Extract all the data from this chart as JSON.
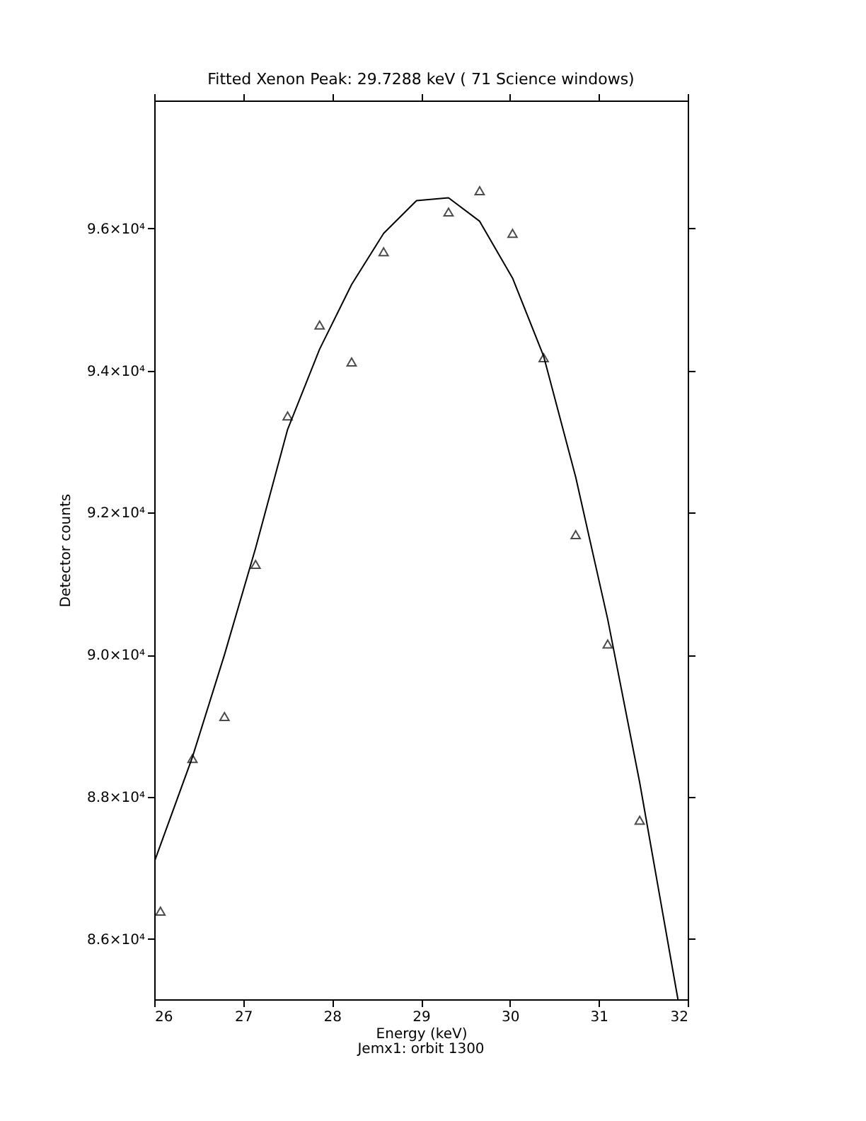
{
  "chart_data": {
    "type": "scatter",
    "title": "Fitted Xenon Peak:       29.7288 keV (      71 Science windows)",
    "xlabel": "Energy (keV)",
    "ylabel": "Detector counts",
    "annotations": [
      "Jemx1: orbit 1300"
    ],
    "xlim": [
      26,
      32
    ],
    "ylim": [
      85150,
      97800
    ],
    "xticks": [
      26,
      27,
      28,
      29,
      30,
      31,
      32
    ],
    "yticks": [
      {
        "value": 86000,
        "label": "8.6×10⁴"
      },
      {
        "value": 88000,
        "label": "8.8×10⁴"
      },
      {
        "value": 90000,
        "label": "9.0×10⁴"
      },
      {
        "value": 92000,
        "label": "9.2×10⁴"
      },
      {
        "value": 94000,
        "label": "9.4×10⁴"
      },
      {
        "value": 96000,
        "label": "9.6×10⁴"
      }
    ],
    "grid": false,
    "series": [
      {
        "type": "line",
        "color": "#000000",
        "line_style": "solid",
        "x": [
          26.0,
          26.43,
          26.79,
          27.14,
          27.5,
          27.86,
          28.22,
          28.58,
          28.95,
          29.31,
          29.66,
          30.03,
          30.38,
          30.74,
          31.1,
          31.46,
          31.89
        ],
        "values": [
          87080,
          88560,
          90000,
          91500,
          93170,
          94300,
          95210,
          95930,
          96390,
          96430,
          96100,
          95300,
          94200,
          92500,
          90500,
          88200,
          85150
        ]
      },
      {
        "color": "#000000",
        "marker": "triangle",
        "x": [
          26.07,
          26.43,
          26.79,
          27.14,
          27.5,
          27.86,
          28.22,
          28.58,
          29.31,
          29.66,
          30.03,
          30.38,
          30.74,
          31.1,
          31.46
        ],
        "values": [
          86390,
          88540,
          89130,
          91270,
          93360,
          94640,
          94120,
          95670,
          96230,
          96530,
          95930,
          94180,
          91690,
          90150,
          87670
        ]
      }
    ]
  }
}
